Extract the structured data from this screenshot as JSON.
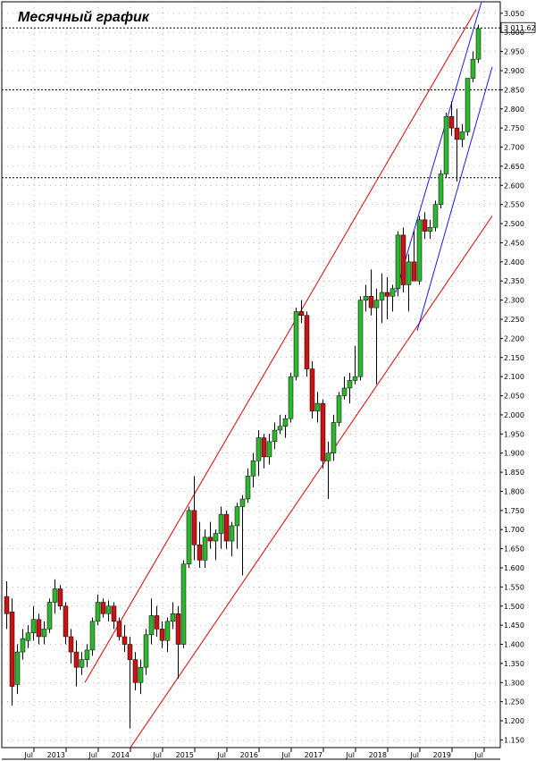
{
  "chart_data": {
    "type": "candlestick",
    "title": "Месячный график",
    "period": "monthly",
    "ylim": [
      1130,
      3080
    ],
    "y_ticks": [
      1150,
      1200,
      1250,
      1300,
      1350,
      1400,
      1450,
      1500,
      1550,
      1600,
      1650,
      1700,
      1750,
      1800,
      1850,
      1900,
      1950,
      2000,
      2050,
      2100,
      2150,
      2200,
      2250,
      2300,
      2350,
      2400,
      2450,
      2500,
      2550,
      2600,
      2650,
      2700,
      2750,
      2800,
      2850,
      2900,
      2950,
      3000,
      3050
    ],
    "y_tick_labels": [
      "1.150",
      "1.200",
      "1.250",
      "1.300",
      "1.350",
      "1.400",
      "1.450",
      "1.500",
      "1.550",
      "1.600",
      "1.650",
      "1.700",
      "1.750",
      "1.800",
      "1.850",
      "1.900",
      "1.950",
      "2.000",
      "2.050",
      "2.100",
      "2.150",
      "2.200",
      "2.250",
      "2.300",
      "2.350",
      "2.400",
      "2.450",
      "2.500",
      "2.550",
      "2.600",
      "2.650",
      "2.700",
      "2.750",
      "2.800",
      "2.850",
      "2.900",
      "2.950",
      "3.000",
      "3.050"
    ],
    "x_labels": [
      {
        "label": "Jul",
        "index": 5
      },
      {
        "label": "2013",
        "index": 11
      },
      {
        "label": "Jul",
        "index": 17
      },
      {
        "label": "2014",
        "index": 23
      },
      {
        "label": "Jul",
        "index": 29
      },
      {
        "label": "2015",
        "index": 35
      },
      {
        "label": "Jul",
        "index": 41
      },
      {
        "label": "2016",
        "index": 47
      },
      {
        "label": "Jul",
        "index": 53
      },
      {
        "label": "2017",
        "index": 59
      },
      {
        "label": "Jul",
        "index": 65
      },
      {
        "label": "2018",
        "index": 71
      },
      {
        "label": "Jul",
        "index": 77
      },
      {
        "label": "2019",
        "index": 83
      },
      {
        "label": "Jul",
        "index": 89
      }
    ],
    "candles": [
      {
        "o": 1525,
        "h": 1565,
        "l": 1440,
        "c": 1480
      },
      {
        "o": 1485,
        "h": 1520,
        "l": 1240,
        "c": 1290
      },
      {
        "o": 1295,
        "h": 1400,
        "l": 1270,
        "c": 1380
      },
      {
        "o": 1380,
        "h": 1440,
        "l": 1360,
        "c": 1415
      },
      {
        "o": 1410,
        "h": 1450,
        "l": 1390,
        "c": 1430
      },
      {
        "o": 1430,
        "h": 1500,
        "l": 1410,
        "c": 1465
      },
      {
        "o": 1465,
        "h": 1480,
        "l": 1400,
        "c": 1420
      },
      {
        "o": 1420,
        "h": 1460,
        "l": 1400,
        "c": 1440
      },
      {
        "o": 1440,
        "h": 1520,
        "l": 1430,
        "c": 1510
      },
      {
        "o": 1510,
        "h": 1570,
        "l": 1480,
        "c": 1545
      },
      {
        "o": 1545,
        "h": 1555,
        "l": 1490,
        "c": 1500
      },
      {
        "o": 1500,
        "h": 1510,
        "l": 1400,
        "c": 1420
      },
      {
        "o": 1420,
        "h": 1440,
        "l": 1350,
        "c": 1380
      },
      {
        "o": 1380,
        "h": 1410,
        "l": 1290,
        "c": 1340
      },
      {
        "o": 1340,
        "h": 1380,
        "l": 1320,
        "c": 1360
      },
      {
        "o": 1360,
        "h": 1400,
        "l": 1340,
        "c": 1385
      },
      {
        "o": 1385,
        "h": 1470,
        "l": 1370,
        "c": 1460
      },
      {
        "o": 1460,
        "h": 1530,
        "l": 1450,
        "c": 1510
      },
      {
        "o": 1510,
        "h": 1520,
        "l": 1470,
        "c": 1480
      },
      {
        "o": 1480,
        "h": 1515,
        "l": 1460,
        "c": 1500
      },
      {
        "o": 1500,
        "h": 1510,
        "l": 1440,
        "c": 1460
      },
      {
        "o": 1460,
        "h": 1470,
        "l": 1410,
        "c": 1420
      },
      {
        "o": 1420,
        "h": 1450,
        "l": 1380,
        "c": 1400
      },
      {
        "o": 1400,
        "h": 1420,
        "l": 1180,
        "c": 1360
      },
      {
        "o": 1360,
        "h": 1380,
        "l": 1280,
        "c": 1300
      },
      {
        "o": 1300,
        "h": 1360,
        "l": 1270,
        "c": 1340
      },
      {
        "o": 1340,
        "h": 1440,
        "l": 1320,
        "c": 1425
      },
      {
        "o": 1425,
        "h": 1520,
        "l": 1400,
        "c": 1475
      },
      {
        "o": 1475,
        "h": 1500,
        "l": 1420,
        "c": 1440
      },
      {
        "o": 1440,
        "h": 1460,
        "l": 1390,
        "c": 1410
      },
      {
        "o": 1410,
        "h": 1470,
        "l": 1380,
        "c": 1460
      },
      {
        "o": 1460,
        "h": 1510,
        "l": 1440,
        "c": 1480
      },
      {
        "o": 1480,
        "h": 1500,
        "l": 1310,
        "c": 1400
      },
      {
        "o": 1400,
        "h": 1620,
        "l": 1390,
        "c": 1610
      },
      {
        "o": 1610,
        "h": 1760,
        "l": 1600,
        "c": 1750
      },
      {
        "o": 1750,
        "h": 1840,
        "l": 1620,
        "c": 1660
      },
      {
        "o": 1660,
        "h": 1720,
        "l": 1600,
        "c": 1620
      },
      {
        "o": 1620,
        "h": 1700,
        "l": 1600,
        "c": 1680
      },
      {
        "o": 1680,
        "h": 1720,
        "l": 1650,
        "c": 1670
      },
      {
        "o": 1670,
        "h": 1700,
        "l": 1620,
        "c": 1690
      },
      {
        "o": 1690,
        "h": 1760,
        "l": 1650,
        "c": 1740
      },
      {
        "o": 1740,
        "h": 1750,
        "l": 1650,
        "c": 1670
      },
      {
        "o": 1670,
        "h": 1720,
        "l": 1630,
        "c": 1710
      },
      {
        "o": 1710,
        "h": 1770,
        "l": 1650,
        "c": 1760
      },
      {
        "o": 1760,
        "h": 1790,
        "l": 1580,
        "c": 1780
      },
      {
        "o": 1780,
        "h": 1860,
        "l": 1770,
        "c": 1840
      },
      {
        "o": 1840,
        "h": 1900,
        "l": 1810,
        "c": 1880
      },
      {
        "o": 1880,
        "h": 1960,
        "l": 1840,
        "c": 1940
      },
      {
        "o": 1940,
        "h": 1950,
        "l": 1860,
        "c": 1890
      },
      {
        "o": 1890,
        "h": 1950,
        "l": 1870,
        "c": 1930
      },
      {
        "o": 1930,
        "h": 1980,
        "l": 1910,
        "c": 1960
      },
      {
        "o": 1960,
        "h": 2000,
        "l": 1950,
        "c": 1970
      },
      {
        "o": 1970,
        "h": 2000,
        "l": 1940,
        "c": 1990
      },
      {
        "o": 1990,
        "h": 2110,
        "l": 1980,
        "c": 2100
      },
      {
        "o": 2100,
        "h": 2280,
        "l": 2090,
        "c": 2270
      },
      {
        "o": 2270,
        "h": 2300,
        "l": 2240,
        "c": 2260
      },
      {
        "o": 2260,
        "h": 2270,
        "l": 2100,
        "c": 2120
      },
      {
        "o": 2120,
        "h": 2140,
        "l": 1990,
        "c": 2010
      },
      {
        "o": 2010,
        "h": 2060,
        "l": 1980,
        "c": 2030
      },
      {
        "o": 2030,
        "h": 2040,
        "l": 1860,
        "c": 1880
      },
      {
        "o": 1880,
        "h": 1930,
        "l": 1780,
        "c": 1900
      },
      {
        "o": 1900,
        "h": 2000,
        "l": 1880,
        "c": 1980
      },
      {
        "o": 1980,
        "h": 2060,
        "l": 1970,
        "c": 2050
      },
      {
        "o": 2050,
        "h": 2100,
        "l": 2040,
        "c": 2070
      },
      {
        "o": 2070,
        "h": 2110,
        "l": 2030,
        "c": 2090
      },
      {
        "o": 2090,
        "h": 2180,
        "l": 2080,
        "c": 2100
      },
      {
        "o": 2100,
        "h": 2310,
        "l": 2090,
        "c": 2300
      },
      {
        "o": 2300,
        "h": 2340,
        "l": 2270,
        "c": 2310
      },
      {
        "o": 2310,
        "h": 2380,
        "l": 2260,
        "c": 2280
      },
      {
        "o": 2280,
        "h": 2330,
        "l": 2080,
        "c": 2300
      },
      {
        "o": 2300,
        "h": 2370,
        "l": 2240,
        "c": 2320
      },
      {
        "o": 2320,
        "h": 2360,
        "l": 2250,
        "c": 2310
      },
      {
        "o": 2310,
        "h": 2340,
        "l": 2270,
        "c": 2330
      },
      {
        "o": 2330,
        "h": 2480,
        "l": 2310,
        "c": 2470
      },
      {
        "o": 2470,
        "h": 2490,
        "l": 2320,
        "c": 2340
      },
      {
        "o": 2340,
        "h": 2420,
        "l": 2270,
        "c": 2400
      },
      {
        "o": 2400,
        "h": 2480,
        "l": 2360,
        "c": 2350
      },
      {
        "o": 2350,
        "h": 2520,
        "l": 2340,
        "c": 2510
      },
      {
        "o": 2510,
        "h": 2530,
        "l": 2460,
        "c": 2480
      },
      {
        "o": 2480,
        "h": 2510,
        "l": 2460,
        "c": 2490
      },
      {
        "o": 2490,
        "h": 2560,
        "l": 2480,
        "c": 2550
      },
      {
        "o": 2550,
        "h": 2640,
        "l": 2540,
        "c": 2630
      },
      {
        "o": 2630,
        "h": 2790,
        "l": 2620,
        "c": 2780
      },
      {
        "o": 2780,
        "h": 2820,
        "l": 2730,
        "c": 2750
      },
      {
        "o": 2750,
        "h": 2800,
        "l": 2610,
        "c": 2720
      },
      {
        "o": 2720,
        "h": 2760,
        "l": 2700,
        "c": 2740
      },
      {
        "o": 2740,
        "h": 2880,
        "l": 2730,
        "c": 2880
      },
      {
        "o": 2880,
        "h": 2950,
        "l": 2870,
        "c": 2930
      },
      {
        "o": 2930,
        "h": 3020,
        "l": 2920,
        "c": 3010
      }
    ],
    "horizontal_levels": [
      3011.62,
      2850,
      2620
    ],
    "last_price_label": "3 011.62",
    "trend_lines": [
      {
        "color": "#e00000",
        "points": [
          [
            15,
            1300
          ],
          [
            88,
            3060
          ]
        ]
      },
      {
        "color": "#e00000",
        "points": [
          [
            23,
            1120
          ],
          [
            91,
            2520
          ]
        ]
      },
      {
        "color": "#1a1aff",
        "points": [
          [
            73,
            2320
          ],
          [
            89,
            3080
          ]
        ]
      },
      {
        "color": "#1a1aff",
        "points": [
          [
            77,
            2220
          ],
          [
            91,
            2910
          ]
        ]
      }
    ],
    "colors": {
      "up": "#2fb52f",
      "down": "#c81414",
      "wick": "#000000",
      "grid": "#000000",
      "frame": "#000000"
    },
    "grid": true
  }
}
